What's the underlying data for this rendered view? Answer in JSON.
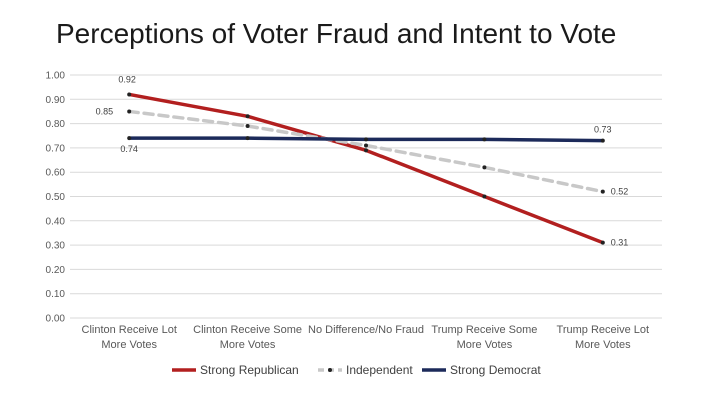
{
  "chart_data": {
    "type": "line",
    "title": "Perceptions of Voter Fraud and Intent to Vote",
    "xlabel": "",
    "ylabel": "",
    "ylim": [
      0,
      1
    ],
    "yticks": [
      "0.00",
      "0.10",
      "0.20",
      "0.30",
      "0.40",
      "0.50",
      "0.60",
      "0.70",
      "0.80",
      "0.90",
      "1.00"
    ],
    "categories": [
      [
        "Clinton Receive Lot",
        "More Votes"
      ],
      [
        "Clinton Receive Some",
        "More Votes"
      ],
      [
        "No Difference/No Fraud"
      ],
      [
        "Trump Receive Some",
        "More Votes"
      ],
      [
        "Trump Receive Lot",
        "More Votes"
      ]
    ],
    "grid": true,
    "legend_position": "bottom",
    "series": [
      {
        "name": "Strong Republican",
        "values": [
          0.92,
          0.83,
          0.69,
          0.5,
          0.31
        ],
        "color": "#b21f1f",
        "style": "solid",
        "labels": [
          "0.92",
          null,
          null,
          null,
          "0.31"
        ]
      },
      {
        "name": "Independent",
        "values": [
          0.85,
          0.79,
          0.71,
          0.62,
          0.52
        ],
        "color": "#c8c8c8",
        "style": "dashed",
        "labels": [
          "0.85",
          null,
          null,
          null,
          "0.52"
        ]
      },
      {
        "name": "Strong Democrat",
        "values": [
          0.74,
          0.74,
          0.735,
          0.735,
          0.73
        ],
        "color": "#1c2a5a",
        "style": "solid",
        "labels": [
          "0.74",
          null,
          null,
          null,
          "0.73"
        ]
      }
    ]
  }
}
